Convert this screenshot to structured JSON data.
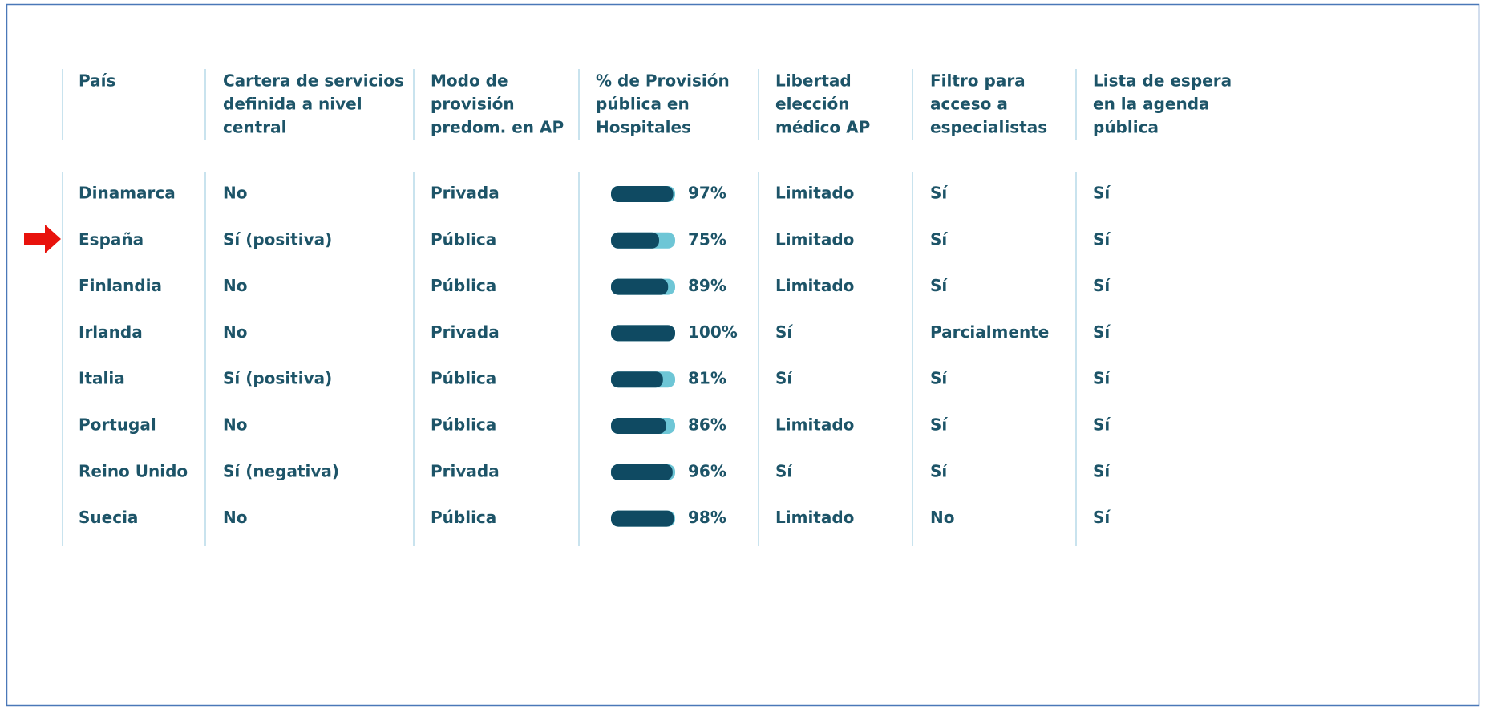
{
  "table": {
    "headers": [
      [
        "País"
      ],
      [
        "Cartera de servicios",
        "definida a nivel",
        "central"
      ],
      [
        "Modo de",
        "provisión",
        "predom. en AP"
      ],
      [
        "% de Provisión",
        "pública en",
        "Hospitales"
      ],
      [
        "Libertad",
        "elección",
        "médico AP"
      ],
      [
        "Filtro para",
        "acceso a",
        "especialistas"
      ],
      [
        "Lista de espera",
        "en la agenda",
        "pública"
      ]
    ],
    "rows": [
      [
        "Dinamarca",
        "No",
        "Privada",
        {
          "value": 97,
          "label": "97%"
        },
        "Limitado",
        "Sí",
        "Sí"
      ],
      [
        "España",
        "Sí (positiva)",
        "Pública",
        {
          "value": 75,
          "label": "75%"
        },
        "Limitado",
        "Sí",
        "Sí"
      ],
      [
        "Finlandia",
        "No",
        "Pública",
        {
          "value": 89,
          "label": "89%"
        },
        "Limitado",
        "Sí",
        "Sí"
      ],
      [
        "Irlanda",
        "No",
        "Privada",
        {
          "value": 100,
          "label": "100%"
        },
        "Sí",
        "Parcialmente",
        "Sí"
      ],
      [
        "Italia",
        "Sí (positiva)",
        "Pública",
        {
          "value": 81,
          "label": "81%"
        },
        "Sí",
        "Sí",
        "Sí"
      ],
      [
        "Portugal",
        "No",
        "Pública",
        {
          "value": 86,
          "label": "86%"
        },
        "Limitado",
        "Sí",
        "Sí"
      ],
      [
        "Reino Unido",
        "Sí (negativa)",
        "Privada",
        {
          "value": 96,
          "label": "96%"
        },
        "Sí",
        "Sí",
        "Sí"
      ],
      [
        "Suecia",
        "No",
        "Pública",
        {
          "value": 98,
          "label": "98%"
        },
        "Limitado",
        "No",
        "Sí"
      ]
    ]
  }
}
